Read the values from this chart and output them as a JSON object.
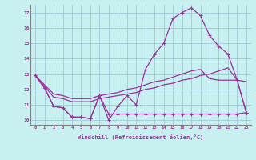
{
  "xlabel": "Windchill (Refroidissement éolien,°C)",
  "background_color": "#c8f0f0",
  "grid_color": "#a0c8d8",
  "line_color": "#993399",
  "x_hours": [
    0,
    1,
    2,
    3,
    4,
    5,
    6,
    7,
    8,
    9,
    10,
    11,
    12,
    13,
    14,
    15,
    16,
    17,
    18,
    19,
    20,
    21,
    22,
    23
  ],
  "series1_y": [
    12.9,
    12.1,
    10.9,
    10.8,
    10.2,
    10.2,
    10.1,
    11.6,
    10.0,
    10.9,
    11.6,
    11.0,
    13.3,
    14.3,
    15.0,
    16.6,
    17.0,
    17.3,
    16.8,
    15.5,
    14.8,
    14.3,
    12.6,
    10.5
  ],
  "series2_y": [
    12.9,
    12.1,
    10.9,
    10.8,
    10.2,
    10.2,
    10.1,
    11.6,
    10.4,
    10.4,
    10.4,
    10.4,
    10.4,
    10.4,
    10.4,
    10.4,
    10.4,
    10.4,
    10.4,
    10.4,
    10.4,
    10.4,
    10.4,
    10.5
  ],
  "series3_y": [
    12.9,
    12.3,
    11.7,
    11.6,
    11.4,
    11.4,
    11.4,
    11.6,
    11.7,
    11.8,
    12.0,
    12.1,
    12.3,
    12.5,
    12.6,
    12.8,
    13.0,
    13.2,
    13.3,
    12.7,
    12.6,
    12.6,
    12.6,
    12.5
  ],
  "series4_y": [
    12.9,
    12.2,
    11.5,
    11.4,
    11.2,
    11.2,
    11.2,
    11.4,
    11.5,
    11.6,
    11.7,
    11.8,
    12.0,
    12.1,
    12.3,
    12.4,
    12.6,
    12.7,
    12.9,
    13.0,
    13.2,
    13.4,
    12.6,
    10.5
  ],
  "ylim": [
    9.7,
    17.5
  ],
  "xlim": [
    -0.5,
    23.5
  ],
  "yticks": [
    10,
    11,
    12,
    13,
    14,
    15,
    16,
    17
  ],
  "xticks": [
    0,
    1,
    2,
    3,
    4,
    5,
    6,
    7,
    8,
    9,
    10,
    11,
    12,
    13,
    14,
    15,
    16,
    17,
    18,
    19,
    20,
    21,
    22,
    23
  ]
}
